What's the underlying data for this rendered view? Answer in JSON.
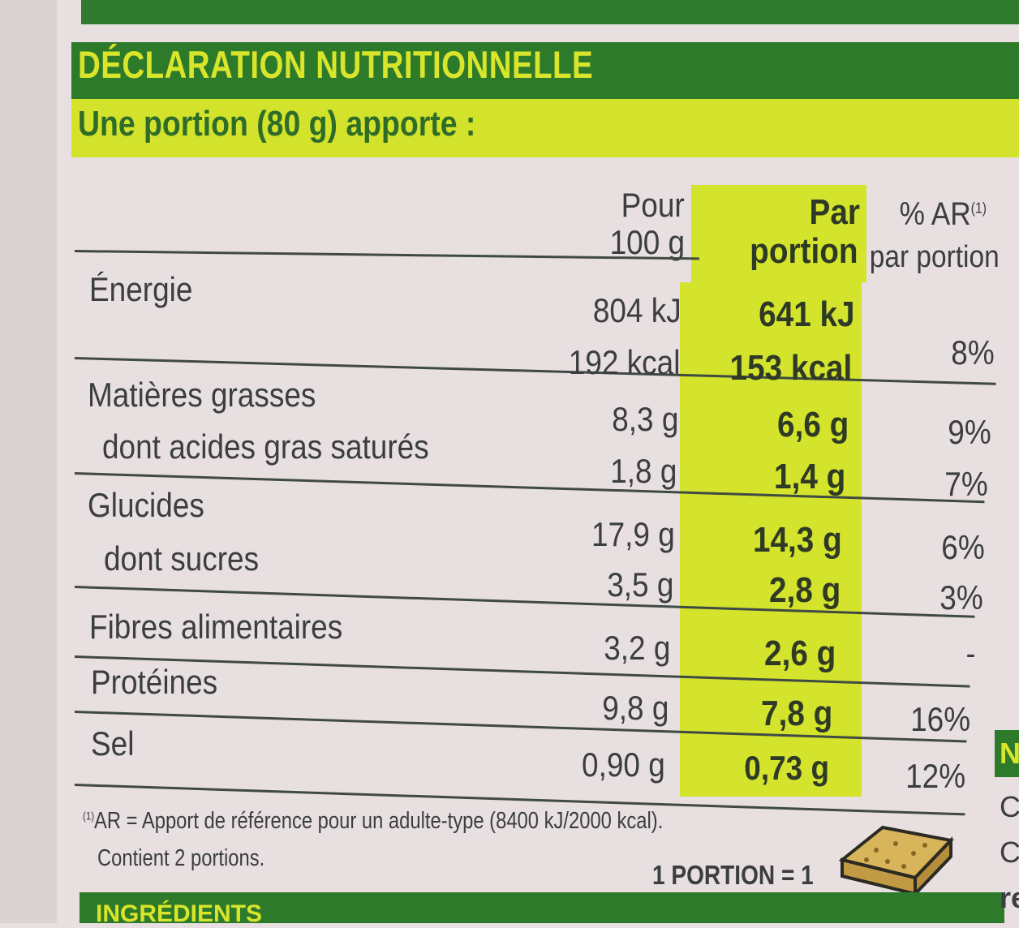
{
  "header": {
    "title": "DÉCLARATION NUTRITIONNELLE",
    "subtitle": "Une portion (80 g) apporte :"
  },
  "columns": {
    "per100_line1": "Pour",
    "per100_line2": "100 g",
    "portion_line1": "Par",
    "portion_line2": "portion",
    "ar_line1": "% AR",
    "ar_sup": "(1)",
    "ar_line2": "par portion"
  },
  "rows": {
    "energy": {
      "label": "Énergie",
      "per100_kj": "804 kJ",
      "per100_kcal": "192 kcal",
      "portion_kj": "641 kJ",
      "portion_kcal": "153 kcal",
      "ar": "8%"
    },
    "fat": {
      "label": "Matières grasses",
      "per100": "8,3 g",
      "portion": "6,6 g",
      "ar": "9%"
    },
    "saturated": {
      "label": "dont acides gras saturés",
      "per100": "1,8 g",
      "portion": "1,4 g",
      "ar": "7%"
    },
    "carbs": {
      "label": "Glucides",
      "per100": "17,9 g",
      "portion": "14,3 g",
      "ar": "6%"
    },
    "sugars": {
      "label": "dont sucres",
      "per100": "3,5 g",
      "portion": "2,8 g",
      "ar": "3%"
    },
    "fibre": {
      "label": "Fibres alimentaires",
      "per100": "3,2 g",
      "portion": "2,6 g",
      "ar": "-"
    },
    "protein": {
      "label": "Protéines",
      "per100": "9,8 g",
      "portion": "7,8 g",
      "ar": "16%"
    },
    "salt": {
      "label": "Sel",
      "per100": "0,90 g",
      "portion": "0,73 g",
      "ar": "12%"
    }
  },
  "footnote": {
    "sup": "(1)",
    "line1": "AR = Apport de référence pour un adulte-type (8400 kJ/2000 kcal).",
    "line2": "Contient 2 portions."
  },
  "portion_note": "1 PORTION = 1",
  "ingredients_header": "INGRÉDIENTS",
  "side_fragments": [
    "N",
    "C",
    "C",
    "re"
  ],
  "colors": {
    "dark_green": "#2e7a2b",
    "lime": "#d4e32c",
    "text": "#3b3d3f"
  }
}
